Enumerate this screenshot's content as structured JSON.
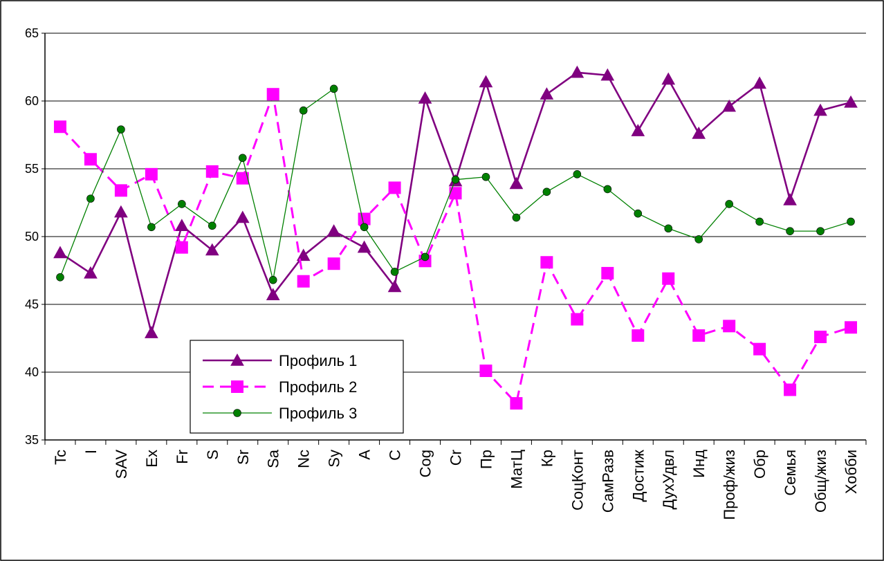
{
  "chart_data": {
    "type": "line",
    "title": "",
    "xlabel": "",
    "ylabel": "",
    "ylim": [
      35,
      65
    ],
    "yticks": [
      35,
      40,
      45,
      50,
      55,
      60,
      65
    ],
    "grid": "horizontal",
    "legend_position": "bottom-left",
    "categories": [
      "Tc",
      "I",
      "SAV",
      "Ex",
      "Fr",
      "S",
      "Sr",
      "Sa",
      "Nc",
      "Sy",
      "A",
      "C",
      "Cog",
      "Cr",
      "Пр",
      "МатЦ",
      "Кр",
      "СоцКонт",
      "СамРазв",
      "Достиж",
      "ДухУдвл",
      "Инд",
      "Проф/жиз",
      "Обр",
      "Семья",
      "Общ/жиз",
      "Хобби"
    ],
    "series": [
      {
        "name": "Профиль 1",
        "color": "#800080",
        "marker": "triangle",
        "dash": "solid",
        "values": [
          48.8,
          47.3,
          51.8,
          42.9,
          50.8,
          49.0,
          51.4,
          45.7,
          48.6,
          50.4,
          49.2,
          46.3,
          60.2,
          54.1,
          61.4,
          53.9,
          60.5,
          62.1,
          61.9,
          57.8,
          61.6,
          57.6,
          59.6,
          61.3,
          52.7,
          59.3,
          59.9
        ]
      },
      {
        "name": "Профиль 2",
        "color": "#ff00ff",
        "marker": "square",
        "dash": "dashed",
        "values": [
          58.1,
          55.7,
          53.4,
          54.6,
          49.2,
          54.8,
          54.3,
          60.5,
          46.7,
          48.0,
          51.3,
          53.6,
          48.2,
          53.2,
          40.1,
          37.7,
          48.1,
          43.9,
          47.3,
          42.7,
          46.9,
          42.7,
          43.4,
          41.7,
          38.7,
          42.6,
          43.3
        ]
      },
      {
        "name": "Профиль 3",
        "color": "#008000",
        "marker": "circle",
        "dash": "solid",
        "values": [
          47.0,
          52.8,
          57.9,
          50.7,
          52.4,
          50.8,
          55.8,
          46.8,
          59.3,
          60.9,
          50.7,
          47.4,
          48.5,
          54.2,
          54.4,
          51.4,
          53.3,
          54.6,
          53.5,
          51.7,
          50.6,
          49.8,
          52.4,
          51.1,
          50.4,
          50.4,
          51.1
        ]
      }
    ]
  }
}
